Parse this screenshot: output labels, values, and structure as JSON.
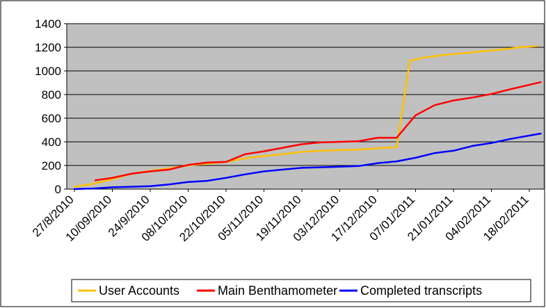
{
  "chart_data": {
    "type": "line",
    "title": "",
    "xlabel": "",
    "ylabel": "",
    "ylim": [
      0,
      1400
    ],
    "yticks": [
      0,
      200,
      400,
      600,
      800,
      1000,
      1200,
      1400
    ],
    "xtick_labels": [
      "27/8/2010",
      "10/09/2010",
      "24/9/2010",
      "08/10/2010",
      "22/10/2010",
      "05/11/2010",
      "19/11/2010",
      "03/12/2010",
      "17/12/2010",
      "07/01/2011",
      "21/01/2011",
      "04/02/2011",
      "18/02/2011"
    ],
    "grid": "horizontal",
    "plot_background": "#c0c0c0",
    "legend_position": "bottom",
    "series": [
      {
        "name": "User Accounts",
        "color": "#ffc000",
        "x": [
          0,
          0.5,
          1,
          1.5,
          2,
          2.5,
          3,
          3.5,
          4,
          4.5,
          5,
          5.5,
          6,
          6.5,
          7,
          7.5,
          8,
          8.5,
          8.85,
          9.25,
          9.75,
          10.25,
          10.75,
          11.25,
          11.75,
          12.2
        ],
        "values": [
          20,
          45,
          85,
          130,
          155,
          175,
          200,
          215,
          230,
          260,
          280,
          295,
          315,
          325,
          330,
          335,
          345,
          355,
          1085,
          1115,
          1135,
          1150,
          1165,
          1180,
          1200,
          1210
        ]
      },
      {
        "name": "Main Benthamometer",
        "color": "#ff0000",
        "x": [
          0.55,
          1,
          1.5,
          2,
          2.5,
          3,
          3.5,
          4,
          4.5,
          5,
          5.5,
          6,
          6.5,
          7,
          7.5,
          8,
          8.5,
          9,
          9.5,
          10,
          10.5,
          11,
          11.5,
          12.3
        ],
        "values": [
          75,
          95,
          130,
          150,
          165,
          205,
          225,
          230,
          295,
          320,
          350,
          380,
          395,
          400,
          405,
          435,
          435,
          625,
          710,
          750,
          775,
          805,
          845,
          905
        ]
      },
      {
        "name": "Completed transcripts",
        "color": "#0000ff",
        "x": [
          0,
          0.5,
          1,
          1.5,
          2,
          2.5,
          3,
          3.5,
          4,
          4.5,
          5,
          5.5,
          6,
          6.5,
          7,
          7.5,
          8,
          8.5,
          9,
          9.5,
          10,
          10.5,
          11,
          11.5,
          12.3
        ],
        "values": [
          0,
          5,
          15,
          20,
          25,
          40,
          60,
          70,
          95,
          125,
          150,
          165,
          180,
          185,
          190,
          195,
          220,
          235,
          265,
          305,
          325,
          365,
          390,
          425,
          470
        ]
      }
    ]
  }
}
